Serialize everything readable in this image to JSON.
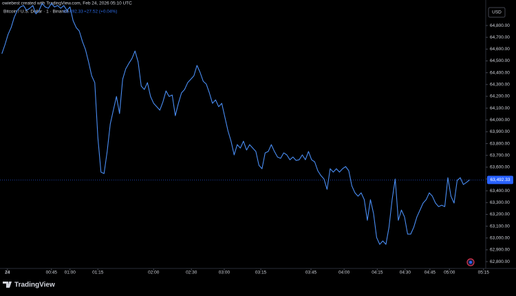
{
  "header": {
    "attribution": "owiebest created with TradingView.com, Feb 24, 2026 05:10 UTC",
    "currency": "USD",
    "brand": "TradingView"
  },
  "chart_data": {
    "type": "line",
    "series": [
      {
        "name": "Bitcoin / U.S. Dollar · 1 · Binance",
        "color": "#4a8ef5",
        "values": [
          64561,
          64637,
          64724,
          64783,
          64870,
          64928,
          64957,
          64969,
          64928,
          64946,
          64969,
          64899,
          64928,
          64987,
          64957,
          64946,
          64987,
          64957,
          64969,
          64946,
          64969,
          64928,
          64957,
          64841,
          64783,
          64753,
          64666,
          64596,
          64491,
          64374,
          64316,
          63850,
          63558,
          63546,
          63733,
          63966,
          64083,
          64199,
          64054,
          64345,
          64433,
          64479,
          64520,
          64584,
          64491,
          64287,
          64258,
          64316,
          64199,
          64141,
          64112,
          64083,
          64153,
          64246,
          64199,
          64211,
          64036,
          64141,
          64229,
          64258,
          64316,
          64345,
          64374,
          64462,
          64403,
          64328,
          64304,
          64229,
          64141,
          64170,
          64112,
          64141,
          64024,
          63908,
          63820,
          63704,
          63791,
          63762,
          63820,
          63745,
          63791,
          63762,
          63733,
          63616,
          63587,
          63721,
          63733,
          63791,
          63733,
          63686,
          63675,
          63721,
          63704,
          63663,
          63686,
          63657,
          63663,
          63704,
          63663,
          63733,
          63663,
          63645,
          63570,
          63529,
          63500,
          63412,
          63587,
          63558,
          63587,
          63558,
          63587,
          63605,
          63570,
          63441,
          63383,
          63354,
          63383,
          63325,
          63150,
          63325,
          63208,
          63004,
          62946,
          62975,
          62946,
          63092,
          63325,
          63500,
          63150,
          63237,
          63179,
          63033,
          63033,
          63092,
          63179,
          63237,
          63296,
          63325,
          63383,
          63354,
          63296,
          63266,
          63278,
          63266,
          63511,
          63354,
          63296,
          63488,
          63511,
          63453,
          63471,
          63492.33
        ]
      }
    ],
    "last_price": {
      "value": 63492.33,
      "label": "63,492.33"
    },
    "change_label": "+27.52 (+0.04%)",
    "ylim": [
      62742,
      65016
    ],
    "yticks": [
      {
        "value": 62800,
        "label": "62,800.00"
      },
      {
        "value": 62900,
        "label": "62,900.00"
      },
      {
        "value": 63000,
        "label": "63,000.00"
      },
      {
        "value": 63100,
        "label": "63,100.00"
      },
      {
        "value": 63200,
        "label": "63,200.00"
      },
      {
        "value": 63300,
        "label": "63,300.00"
      },
      {
        "value": 63400,
        "label": "63,400.00"
      },
      {
        "value": 63500,
        "label": "63,500.00"
      },
      {
        "value": 63600,
        "label": "63,600.00"
      },
      {
        "value": 63700,
        "label": "63,700.00"
      },
      {
        "value": 63800,
        "label": "63,800.00"
      },
      {
        "value": 63900,
        "label": "63,900.00"
      },
      {
        "value": 64000,
        "label": "64,000.00"
      },
      {
        "value": 64100,
        "label": "64,100.00"
      },
      {
        "value": 64200,
        "label": "64,200.00"
      },
      {
        "value": 64300,
        "label": "64,300.00"
      },
      {
        "value": 64400,
        "label": "64,400.00"
      },
      {
        "value": 64500,
        "label": "64,500.00"
      },
      {
        "value": 64600,
        "label": "64,600.00"
      },
      {
        "value": 64700,
        "label": "64,700.00"
      },
      {
        "value": 64800,
        "label": "64,800.00"
      }
    ],
    "xlim": [
      -0.6,
      156
    ],
    "xticks": [
      {
        "value": 1.8,
        "label": "24"
      },
      {
        "value": 16,
        "label": "00:45"
      },
      {
        "value": 22,
        "label": "01:00"
      },
      {
        "value": 31,
        "label": "01:15"
      },
      {
        "value": 49,
        "label": "02:00"
      },
      {
        "value": 61.2,
        "label": "02:30"
      },
      {
        "value": 71.8,
        "label": "03:00"
      },
      {
        "value": 83.6,
        "label": "03:15"
      },
      {
        "value": 99.8,
        "label": "03:45"
      },
      {
        "value": 110.5,
        "label": "04:00"
      },
      {
        "value": 121.2,
        "label": "04:15"
      },
      {
        "value": 130.2,
        "label": "04:30"
      },
      {
        "value": 138.2,
        "label": "04:45"
      },
      {
        "value": 144.5,
        "label": "05:00"
      },
      {
        "value": 155.5,
        "label": "05:15"
      }
    ],
    "grid": false
  }
}
